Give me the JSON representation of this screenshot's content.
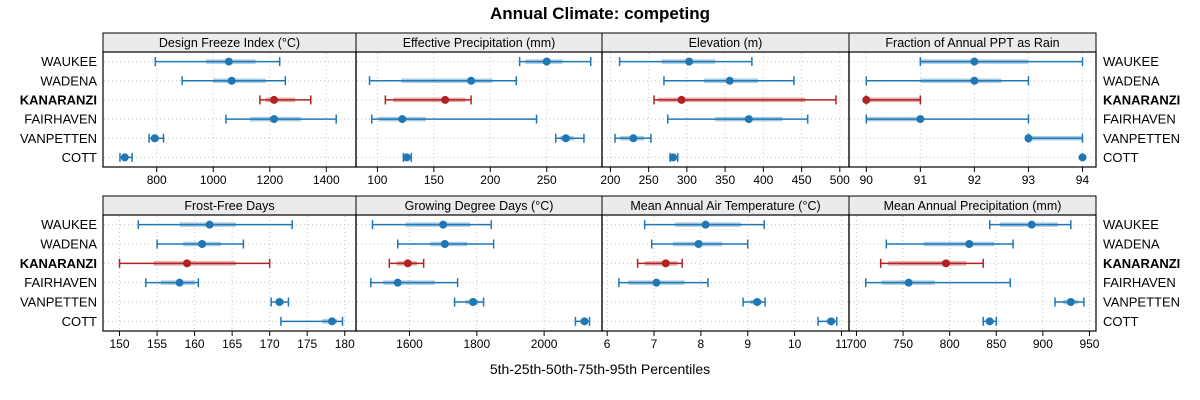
{
  "title": "Annual Climate: competing",
  "caption": "5th-25th-50th-75th-95th Percentiles",
  "colors": {
    "series_default": "#1f77b4",
    "series_default_band": "rgba(31,119,180,0.38)",
    "series_highlight": "#b22222",
    "series_highlight_band": "rgba(178,34,34,0.38)",
    "grid": "#c6c6c6",
    "strip_bg": "#ebebeb",
    "panel_border": "#000000",
    "text": "#000000"
  },
  "chart_data": {
    "type": "trellis-errorbar",
    "title": "Annual Climate: competing",
    "caption": "5th-25th-50th-75th-95th Percentiles",
    "percentile_levels": [
      5,
      25,
      50,
      75,
      95
    ],
    "grid": true,
    "legend": "none",
    "sites": [
      "WAUKEE",
      "WADENA",
      "KANARANZI",
      "FAIRHAVEN",
      "VANPETTEN",
      "COTT"
    ],
    "highlight_site": "KANARANZI",
    "panels": [
      {
        "title": "Design Freeze Index (°C)",
        "row": 0,
        "col": 0,
        "axis_ticks": [
          800,
          1000,
          1200,
          1400
        ],
        "axis_range": [
          610,
          1505
        ],
        "values": {
          "WAUKEE": [
            795,
            975,
            1055,
            1150,
            1235
          ],
          "WADENA": [
            890,
            1000,
            1065,
            1185,
            1255
          ],
          "KANARANZI": [
            1165,
            1185,
            1215,
            1290,
            1345
          ],
          "FAIRHAVEN": [
            1045,
            1130,
            1215,
            1310,
            1435
          ],
          "VANPETTEN": [
            773,
            782,
            793,
            808,
            824
          ],
          "COTT": [
            670,
            676,
            687,
            698,
            713
          ]
        }
      },
      {
        "title": "Effective Precipitation (mm)",
        "row": 0,
        "col": 1,
        "axis_ticks": [
          100,
          150,
          200,
          250
        ],
        "axis_range": [
          81,
          299
        ],
        "values": {
          "WAUKEE": [
            226,
            231,
            250,
            264,
            289
          ],
          "WADENA": [
            93,
            121,
            183,
            202,
            223
          ],
          "KANARANZI": [
            107,
            114,
            160,
            178,
            183
          ],
          "FAIRHAVEN": [
            95,
            101,
            122,
            143,
            241
          ],
          "VANPETTEN": [
            258,
            262,
            267,
            274,
            283
          ],
          "COTT": [
            123,
            124,
            126,
            128,
            130
          ]
        }
      },
      {
        "title": "Elevation (m)",
        "row": 0,
        "col": 2,
        "axis_ticks": [
          200,
          250,
          300,
          350,
          400,
          450,
          500
        ],
        "axis_range": [
          189,
          512
        ],
        "values": {
          "WAUKEE": [
            212,
            267,
            303,
            337,
            385
          ],
          "WADENA": [
            270,
            322,
            356,
            393,
            440
          ],
          "KANARANZI": [
            257,
            262,
            293,
            455,
            495
          ],
          "FAIRHAVEN": [
            275,
            337,
            381,
            425,
            458
          ],
          "VANPETTEN": [
            206,
            213,
            230,
            244,
            253
          ],
          "COTT": [
            278,
            280,
            282,
            285,
            288
          ]
        }
      },
      {
        "title": "Fraction of Annual PPT as Rain",
        "row": 0,
        "col": 3,
        "axis_ticks": [
          90,
          91,
          92,
          93,
          94
        ],
        "axis_range": [
          89.68,
          94.25
        ],
        "values": {
          "WAUKEE": [
            91,
            91,
            92,
            93,
            94
          ],
          "WADENA": [
            90,
            91,
            92,
            92.5,
            93
          ],
          "KANARANZI": [
            90,
            90,
            90,
            91,
            91
          ],
          "FAIRHAVEN": [
            90,
            90,
            91,
            91,
            93
          ],
          "VANPETTEN": [
            93,
            93,
            93,
            94,
            94
          ],
          "COTT": [
            94,
            94,
            94,
            94,
            94
          ]
        }
      },
      {
        "title": "Frost-Free Days",
        "row": 1,
        "col": 0,
        "axis_ticks": [
          150,
          155,
          160,
          165,
          170,
          175,
          180
        ],
        "axis_range": [
          147.8,
          181.5
        ],
        "values": {
          "WAUKEE": [
            152.5,
            158,
            162,
            165.5,
            173
          ],
          "WADENA": [
            155,
            158.5,
            161,
            163.5,
            166.5
          ],
          "KANARANZI": [
            150,
            154.5,
            159,
            165.5,
            170
          ],
          "FAIRHAVEN": [
            153.5,
            155.5,
            158,
            160,
            160.5
          ],
          "VANPETTEN": [
            170.2,
            170.8,
            171.3,
            171.9,
            172.5
          ],
          "COTT": [
            171.5,
            177,
            178.3,
            179,
            179.7
          ]
        }
      },
      {
        "title": "Growing Degree Days (°C)",
        "row": 1,
        "col": 1,
        "axis_ticks": [
          1600,
          1800,
          2000
        ],
        "axis_range": [
          1441,
          2172
        ],
        "values": {
          "WAUKEE": [
            1490,
            1588,
            1700,
            1780,
            1843
          ],
          "WADENA": [
            1565,
            1662,
            1705,
            1772,
            1850
          ],
          "KANARANZI": [
            1540,
            1562,
            1595,
            1622,
            1642
          ],
          "FAIRHAVEN": [
            1485,
            1522,
            1565,
            1675,
            1743
          ],
          "VANPETTEN": [
            1734,
            1767,
            1789,
            1805,
            1820
          ],
          "COTT": [
            2093,
            2108,
            2120,
            2128,
            2135
          ]
        }
      },
      {
        "title": "Mean Annual Air Temperature (°C)",
        "row": 1,
        "col": 2,
        "axis_ticks": [
          6,
          7,
          8,
          9,
          10,
          11
        ],
        "axis_range": [
          5.89,
          11.16
        ],
        "values": {
          "WAUKEE": [
            6.8,
            7.45,
            8.1,
            8.85,
            9.35
          ],
          "WADENA": [
            6.95,
            7.4,
            7.95,
            8.45,
            9.0
          ],
          "KANARANZI": [
            6.65,
            6.8,
            7.25,
            7.5,
            7.6
          ],
          "FAIRHAVEN": [
            6.25,
            6.45,
            7.05,
            7.65,
            8.15
          ],
          "VANPETTEN": [
            8.9,
            9.05,
            9.2,
            9.3,
            9.37
          ],
          "COTT": [
            10.5,
            10.68,
            10.78,
            10.85,
            10.9
          ]
        }
      },
      {
        "title": "Mean Annual Precipitation (mm)",
        "row": 1,
        "col": 3,
        "axis_ticks": [
          700,
          750,
          800,
          850,
          900,
          950
        ],
        "axis_range": [
          692,
          957
        ],
        "values": {
          "WAUKEE": [
            843,
            854,
            888,
            916,
            930
          ],
          "WADENA": [
            732,
            772,
            821,
            848,
            868
          ],
          "KANARANZI": [
            726,
            734,
            796,
            818,
            836
          ],
          "FAIRHAVEN": [
            710,
            727,
            756,
            784,
            865
          ],
          "VANPETTEN": [
            913,
            922,
            930,
            938,
            944
          ],
          "COTT": [
            836,
            839,
            843,
            847,
            850
          ]
        }
      }
    ]
  }
}
